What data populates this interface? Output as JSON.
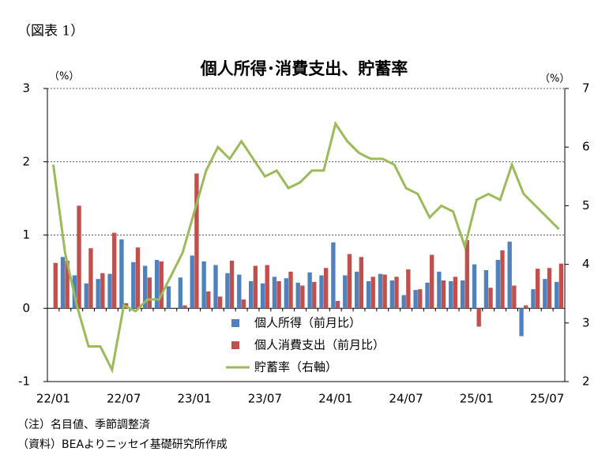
{
  "header": "（図表 1）",
  "notes": [
    "（注）名目値、季節調整済",
    "（資料）BEAよりニッセイ基礎研究所作成"
  ],
  "chart_data": {
    "type": "bar-line",
    "title": "個人所得･消費支出、貯蓄率",
    "y_label": "（%）",
    "y2_label": "（%）",
    "categories": [
      "22/01",
      null,
      null,
      null,
      null,
      null,
      "22/07",
      null,
      null,
      null,
      null,
      null,
      "23/01",
      null,
      null,
      null,
      null,
      null,
      "23/07",
      null,
      null,
      null,
      null,
      null,
      "24/01",
      null,
      null,
      null,
      null,
      null,
      "24/07",
      null,
      null,
      null,
      null,
      null,
      "25/01",
      null,
      null,
      null,
      null,
      null,
      "25/07",
      null
    ],
    "series": [
      {
        "name": "個人所得（前月比）",
        "color": "#4f81bd",
        "kind": "bar",
        "axis": "y",
        "values": [
          0,
          0.7,
          0.45,
          0.34,
          0.4,
          0.47,
          0.94,
          0.63,
          0.58,
          0.66,
          0.3,
          0.42,
          0.72,
          0.64,
          0.59,
          0.48,
          0.46,
          0.37,
          0.34,
          0.43,
          0.41,
          0.35,
          0.49,
          0.45,
          0.9,
          0.45,
          0.5,
          0.37,
          0.47,
          0.38,
          0.18,
          0.25,
          0.35,
          0.5,
          0.37,
          0.38,
          0.6,
          0.52,
          0.66,
          0.91,
          -0.38,
          0.26,
          0.4,
          0.36
        ]
      },
      {
        "name": "個人消費支出（前月比）",
        "color": "#c0504d",
        "kind": "bar",
        "axis": "y",
        "values": [
          0.62,
          0.65,
          1.4,
          0.82,
          0.48,
          1.03,
          0.07,
          0.83,
          0.42,
          0.64,
          0,
          0.04,
          1.84,
          0.23,
          0.16,
          0.65,
          0.12,
          0.58,
          0.59,
          0.37,
          0.5,
          0.31,
          0.36,
          0.55,
          0.1,
          0.74,
          0.7,
          0.43,
          0.46,
          0.43,
          0.53,
          0.26,
          0.73,
          0.38,
          0.43,
          0.93,
          -0.25,
          0.28,
          0.79,
          0.31,
          0.04,
          0.54,
          0.55,
          0.61
        ]
      },
      {
        "name": "貯蓄率（右軸）",
        "color": "#9bbb59",
        "kind": "line",
        "axis": "y2",
        "values": [
          5.7,
          4.2,
          3.3,
          2.6,
          2.6,
          2.2,
          3.3,
          3.2,
          3.4,
          3.4,
          3.8,
          4.2,
          4.9,
          5.6,
          6.0,
          5.8,
          6.1,
          5.8,
          5.5,
          5.6,
          5.3,
          5.4,
          5.6,
          5.6,
          6.4,
          6.1,
          5.9,
          5.8,
          5.8,
          5.7,
          5.3,
          5.2,
          4.8,
          5.0,
          4.9,
          4.3,
          5.1,
          5.2,
          5.1,
          5.7,
          5.2,
          5.0,
          4.8,
          4.6
        ]
      }
    ],
    "ylim": [
      -1,
      3
    ],
    "yticks": [
      -1,
      0,
      1,
      2,
      3
    ],
    "y2lim": [
      2,
      7
    ],
    "y2ticks": [
      2,
      3,
      4,
      5,
      6,
      7
    ],
    "grid": true
  }
}
